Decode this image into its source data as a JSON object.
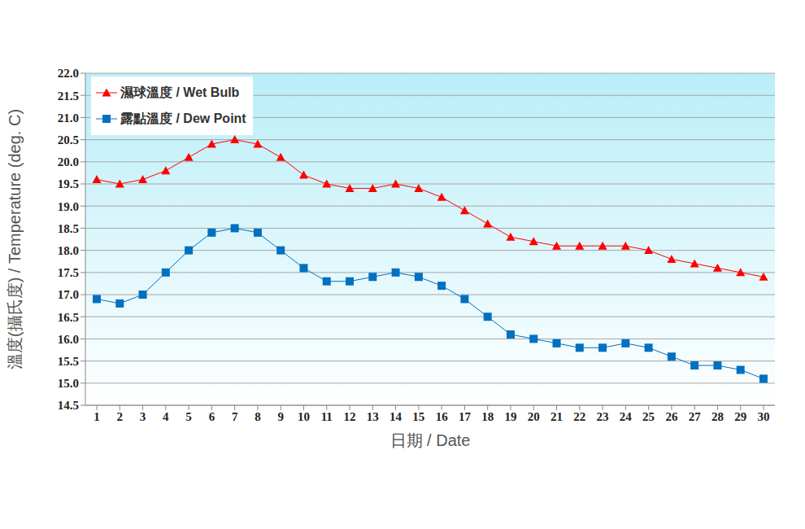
{
  "chart_data": {
    "type": "line",
    "x_label": "日期 / Date",
    "y_label": "溫度(攝氏度) / Temperature (deg. C)",
    "categories": [
      "1",
      "2",
      "3",
      "4",
      "5",
      "6",
      "7",
      "8",
      "9",
      "10",
      "11",
      "12",
      "13",
      "14",
      "15",
      "16",
      "17",
      "18",
      "19",
      "20",
      "21",
      "22",
      "23",
      "24",
      "25",
      "26",
      "27",
      "28",
      "29",
      "30"
    ],
    "series": [
      {
        "name": "濕球溫度 / Wet Bulb",
        "color": "#ff0000",
        "marker": "triangle",
        "values": [
          19.6,
          19.5,
          19.6,
          19.8,
          20.1,
          20.4,
          20.5,
          20.4,
          20.1,
          19.7,
          19.5,
          19.4,
          19.4,
          19.5,
          19.4,
          19.2,
          18.9,
          18.6,
          18.3,
          18.2,
          18.1,
          18.1,
          18.1,
          18.1,
          18.0,
          17.8,
          17.7,
          17.6,
          17.5,
          17.4
        ]
      },
      {
        "name": "露點溫度 / Dew Point",
        "color": "#0070c0",
        "marker": "square",
        "values": [
          16.9,
          16.8,
          17.0,
          17.5,
          18.0,
          18.4,
          18.5,
          18.4,
          18.0,
          17.6,
          17.3,
          17.3,
          17.4,
          17.5,
          17.4,
          17.2,
          16.9,
          16.5,
          16.1,
          16.0,
          15.9,
          15.8,
          15.8,
          15.9,
          15.8,
          15.6,
          15.4,
          15.4,
          15.3,
          15.1
        ]
      }
    ],
    "ylim": [
      14.5,
      22.0
    ],
    "yticks": [
      14.5,
      {
        "value": 15,
        "label": "15.0"
      },
      15.5,
      {
        "value": 16,
        "label": "16.0"
      },
      16.5,
      {
        "value": 17,
        "label": "17.0"
      },
      17.5,
      {
        "value": 18,
        "label": "18.0"
      },
      18.5,
      {
        "value": 19,
        "label": "19.0"
      },
      19.5,
      {
        "value": 20,
        "label": "20.0"
      },
      20.5,
      {
        "value": 21,
        "label": "21.0"
      },
      21.5,
      {
        "value": 22,
        "label": "22.0"
      }
    ],
    "grid": true,
    "legend": "top-left"
  }
}
